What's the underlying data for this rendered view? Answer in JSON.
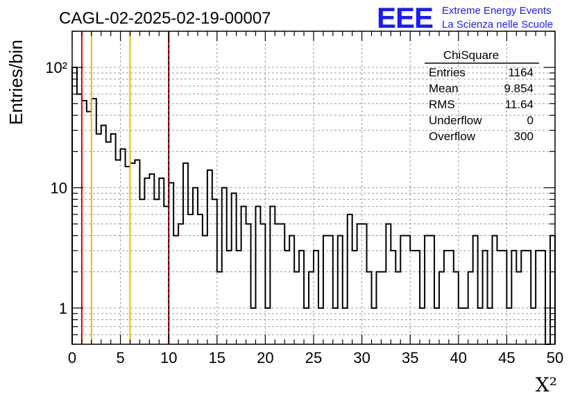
{
  "title": "CAGL-02-2025-02-19-00007",
  "logo": {
    "mark": "EEE",
    "line1": "Extreme Energy Events",
    "line2": "La Scienza nelle Scuole",
    "color": "#1a1aff"
  },
  "stats_box": {
    "title": "ChiSquare",
    "rows": [
      {
        "label": "Entries",
        "value": "1164"
      },
      {
        "label": "Mean",
        "value": "9.854"
      },
      {
        "label": "RMS",
        "value": "11.64"
      },
      {
        "label": "Underflow",
        "value": "0"
      },
      {
        "label": "Overflow",
        "value": "300"
      }
    ]
  },
  "chart_data": {
    "type": "histogram",
    "title": "CAGL-02-2025-02-19-00007",
    "xlabel": "X²",
    "ylabel": "Entries/bin",
    "yscale": "log",
    "xlim": [
      0,
      50
    ],
    "ylim": [
      0.5,
      200
    ],
    "grid": true,
    "x_ticks": [
      {
        "value": 0,
        "label": "0"
      },
      {
        "value": 5,
        "label": "5"
      },
      {
        "value": 10,
        "label": "10"
      },
      {
        "value": 15,
        "label": "15"
      },
      {
        "value": 20,
        "label": "20"
      },
      {
        "value": 25,
        "label": "25"
      },
      {
        "value": 30,
        "label": "30"
      },
      {
        "value": 35,
        "label": "35"
      },
      {
        "value": 40,
        "label": "40"
      },
      {
        "value": 45,
        "label": "45"
      },
      {
        "value": 50,
        "label": "50"
      }
    ],
    "y_ticks": [
      {
        "value": 1,
        "label": "1"
      },
      {
        "value": 10,
        "label": "10"
      },
      {
        "value": 100,
        "label": "10²"
      }
    ],
    "bin_width": 0.5,
    "bin_start": 0,
    "values": [
      100,
      60,
      53,
      43,
      55,
      28,
      33,
      24,
      28,
      17,
      21,
      15,
      16,
      17,
      8,
      12,
      13,
      8,
      12,
      7,
      11,
      4,
      5,
      16,
      6,
      10,
      6,
      4,
      14,
      8,
      2,
      10,
      3,
      9,
      3,
      7,
      5,
      1,
      7,
      5,
      1,
      7,
      5,
      5,
      3,
      4,
      2,
      3,
      1,
      2,
      3,
      1,
      4,
      4,
      1,
      4,
      1,
      6,
      3,
      5,
      5,
      2,
      1,
      2,
      2,
      5,
      3,
      2,
      4,
      4,
      3,
      3,
      1,
      4,
      4,
      1,
      2,
      3,
      3,
      2,
      1,
      1,
      2,
      4,
      1,
      3,
      1,
      4,
      3,
      3,
      1,
      3,
      2,
      3,
      3,
      1,
      3,
      3,
      0,
      4
    ],
    "vertical_lines": [
      {
        "x": 1,
        "color": "#dd0000",
        "style": "solid"
      },
      {
        "x": 2,
        "color": "#f2b705",
        "style": "solid"
      },
      {
        "x": 6,
        "color": "#f2b705",
        "style": "solid"
      },
      {
        "x": 10,
        "color": "#dd0000",
        "style": "dashed"
      }
    ]
  }
}
